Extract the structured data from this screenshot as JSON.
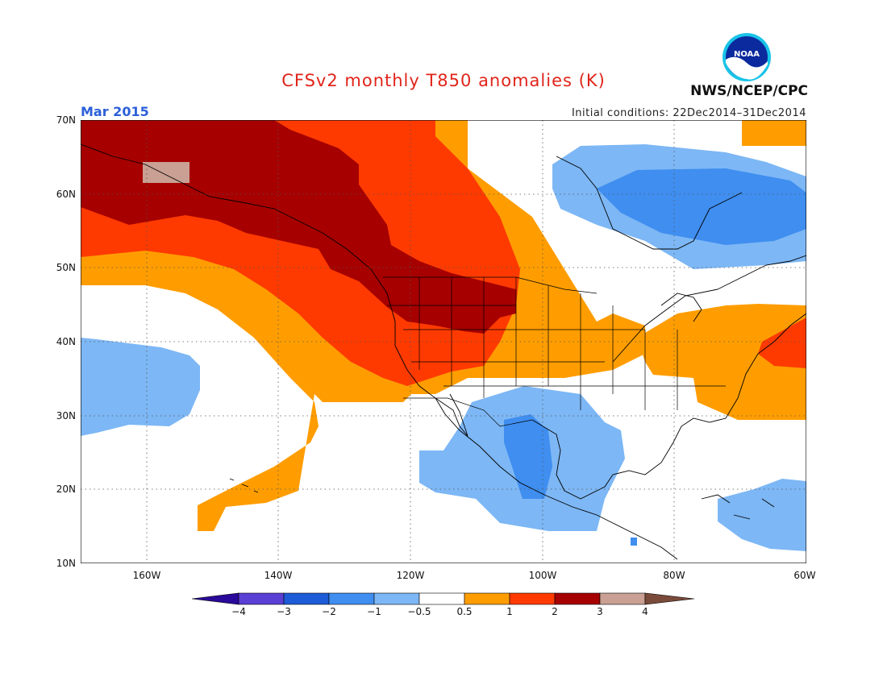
{
  "title": "CFSv2 monthly T850 anomalies (K)",
  "month": "Mar 2015",
  "initial_conditions": "Initial conditions: 22Dec2014–31Dec2014",
  "org_label": "NWS/NCEP/CPC",
  "logo_text": "NOAA",
  "lat_labels": [
    "70N",
    "60N",
    "50N",
    "40N",
    "30N",
    "20N",
    "10N"
  ],
  "lon_labels": [
    "160W",
    "140W",
    "120W",
    "100W",
    "80W",
    "60W"
  ],
  "colorbar": {
    "labels": [
      "−4",
      "−3",
      "−2",
      "−1",
      "−0.5",
      "0.5",
      "1",
      "2",
      "3",
      "4"
    ],
    "colors": [
      "#2a0a9a",
      "#5a3fd4",
      "#1e5bd6",
      "#3f8ef0",
      "#7db7f5",
      "#ffffff",
      "#ff9d00",
      "#ff3a00",
      "#a60000",
      "#c9a093",
      "#7a4a3a"
    ]
  },
  "palette": {
    "darkred": "#a60000",
    "red": "#ff3a00",
    "orange": "#ff9d00",
    "lightblue": "#7db7f5",
    "blue": "#3f8ef0",
    "tan": "#c9a093"
  }
}
